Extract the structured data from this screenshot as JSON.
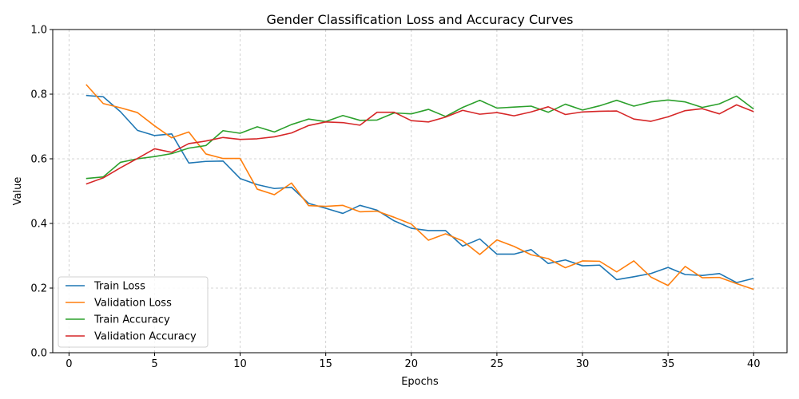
{
  "chart_data": {
    "type": "line",
    "title": "Gender Classification Loss and Accuracy Curves",
    "xlabel": "Epochs",
    "ylabel": "Value",
    "xlim": [
      -0.95,
      41.95
    ],
    "ylim": [
      0.0,
      1.0
    ],
    "xticks": [
      0,
      5,
      10,
      15,
      20,
      25,
      30,
      35,
      40
    ],
    "yticks": [
      0.0,
      0.2,
      0.4,
      0.6,
      0.8,
      1.0
    ],
    "xtick_labels": [
      "0",
      "5",
      "10",
      "15",
      "20",
      "25",
      "30",
      "35",
      "40"
    ],
    "ytick_labels": [
      "0.0",
      "0.2",
      "0.4",
      "0.6",
      "0.8",
      "1.0"
    ],
    "grid": true,
    "legend_position": "lower-left",
    "x": [
      1,
      2,
      3,
      4,
      5,
      6,
      7,
      8,
      9,
      10,
      11,
      12,
      13,
      14,
      15,
      16,
      17,
      18,
      19,
      20,
      21,
      22,
      23,
      24,
      25,
      26,
      27,
      28,
      29,
      30,
      31,
      32,
      33,
      34,
      35,
      36,
      37,
      38,
      39,
      40
    ],
    "series": [
      {
        "name": "Train Loss",
        "color": "#1f77b4",
        "values": [
          0.796,
          0.792,
          0.746,
          0.688,
          0.672,
          0.677,
          0.587,
          0.592,
          0.593,
          0.539,
          0.52,
          0.508,
          0.512,
          0.462,
          0.447,
          0.431,
          0.456,
          0.441,
          0.408,
          0.385,
          0.378,
          0.378,
          0.33,
          0.352,
          0.305,
          0.305,
          0.319,
          0.276,
          0.287,
          0.269,
          0.271,
          0.226,
          0.235,
          0.245,
          0.264,
          0.242,
          0.239,
          0.245,
          0.217,
          0.23
        ]
      },
      {
        "name": "Validation Loss",
        "color": "#ff7f0e",
        "values": [
          0.83,
          0.771,
          0.758,
          0.743,
          0.702,
          0.665,
          0.683,
          0.615,
          0.601,
          0.601,
          0.506,
          0.489,
          0.525,
          0.455,
          0.453,
          0.456,
          0.436,
          0.438,
          0.419,
          0.398,
          0.348,
          0.368,
          0.346,
          0.304,
          0.349,
          0.329,
          0.303,
          0.291,
          0.263,
          0.284,
          0.283,
          0.25,
          0.284,
          0.234,
          0.208,
          0.267,
          0.232,
          0.233,
          0.214,
          0.196
        ]
      },
      {
        "name": "Train Accuracy",
        "color": "#2ca02c",
        "values": [
          0.539,
          0.544,
          0.589,
          0.6,
          0.607,
          0.616,
          0.633,
          0.641,
          0.687,
          0.679,
          0.699,
          0.683,
          0.706,
          0.723,
          0.715,
          0.734,
          0.719,
          0.72,
          0.742,
          0.739,
          0.753,
          0.731,
          0.759,
          0.781,
          0.757,
          0.76,
          0.763,
          0.744,
          0.769,
          0.751,
          0.764,
          0.781,
          0.763,
          0.776,
          0.782,
          0.776,
          0.759,
          0.77,
          0.794,
          0.754
        ]
      },
      {
        "name": "Validation Accuracy",
        "color": "#d62728",
        "values": [
          0.522,
          0.541,
          0.572,
          0.601,
          0.631,
          0.62,
          0.647,
          0.655,
          0.666,
          0.66,
          0.662,
          0.668,
          0.68,
          0.703,
          0.714,
          0.712,
          0.704,
          0.744,
          0.744,
          0.718,
          0.714,
          0.729,
          0.75,
          0.738,
          0.743,
          0.733,
          0.745,
          0.761,
          0.737,
          0.745,
          0.747,
          0.748,
          0.723,
          0.716,
          0.73,
          0.749,
          0.755,
          0.739,
          0.767,
          0.746
        ]
      }
    ]
  }
}
